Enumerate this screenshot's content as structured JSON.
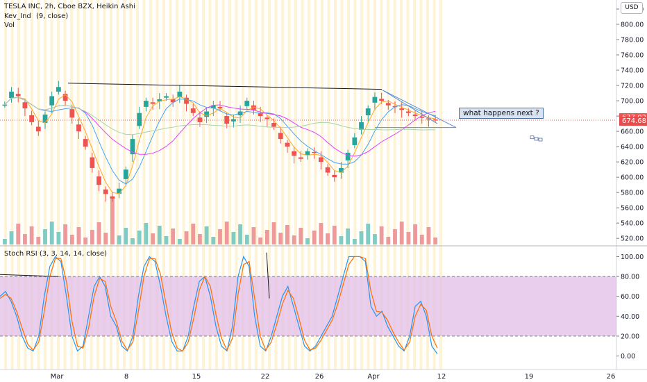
{
  "header": {
    "symbol_line": "TESLA INC, 2h, Cboe BZX, Heikin Ashi",
    "indicator_1": "Kev_Ind",
    "indicator_1_params": "(9, close)",
    "indicator_2": "Vol",
    "currency": "USD"
  },
  "annotation": {
    "text": "what happens next ?"
  },
  "price_tags": [
    {
      "label": "677.02",
      "value": 677.02,
      "color": "#ef5350"
    },
    {
      "label": "674.68",
      "value": 674.68,
      "color": "#e84c4c"
    }
  ],
  "rsi_pane": {
    "title": "Stoch RSI (3, 3, 14, 14, close)"
  },
  "colors": {
    "up": "#26a69a",
    "down": "#ef5350",
    "vol_up": "#80cbc4",
    "vol_down": "#ef9a9a",
    "ma_green": "#a5d6a7",
    "ma_pink": "#e040fb",
    "ma_blue": "#42a5f5",
    "ma_orange": "#ffa726",
    "rsi_k": "#2196f3",
    "rsi_d": "#ff6d00",
    "rsi_band": "#e1bee7",
    "session_band": "#fff3d6",
    "trendline": "#131722",
    "triangle": "#5b8dd6"
  },
  "chart_data": [
    {
      "type": "candlestick",
      "title": "TESLA INC, 2h, Cboe BZX, Heikin Ashi",
      "x_tick_labels": [
        "Mar",
        "8",
        "15",
        "22",
        "26",
        "Apr",
        "12",
        "19",
        "26"
      ],
      "y_tick_labels": [
        "520.00",
        "540.00",
        "560.00",
        "580.00",
        "600.00",
        "620.00",
        "640.00",
        "660.00",
        "680.00",
        "700.00",
        "720.00",
        "740.00",
        "760.00",
        "780.00",
        "800.00",
        "820.00"
      ],
      "ylim": [
        512,
        830
      ],
      "last_prices": [
        677.02,
        674.68
      ],
      "closes_sampled": [
        695,
        712,
        706,
        690,
        672,
        660,
        682,
        706,
        718,
        700,
        678,
        660,
        640,
        612,
        590,
        578,
        572,
        585,
        610,
        650,
        684,
        700,
        696,
        702,
        706,
        698,
        712,
        696,
        684,
        672,
        686,
        694,
        690,
        670,
        676,
        686,
        700,
        688,
        680,
        676,
        666,
        650,
        640,
        628,
        624,
        634,
        632,
        620,
        606,
        600,
        612,
        632,
        652,
        672,
        690,
        705,
        700,
        694,
        692,
        688,
        684,
        680,
        678,
        676,
        675
      ],
      "resistance_level": 715,
      "triangle": {
        "upper_start": 714,
        "upper_end": 670,
        "lower": 665
      }
    },
    {
      "type": "bar",
      "title": "Vol",
      "note": "volume histogram under price, unlabeled scale"
    },
    {
      "type": "line",
      "title": "Stoch RSI (3, 3, 14, 14, close)",
      "y_tick_labels": [
        "0.00",
        "20.00",
        "40.00",
        "60.00",
        "80.00",
        "100.00"
      ],
      "ylim": [
        -8,
        108
      ],
      "bands": [
        20,
        80
      ],
      "series": [
        {
          "name": "K",
          "values": [
            60,
            65,
            55,
            40,
            20,
            8,
            5,
            20,
            60,
            90,
            100,
            95,
            60,
            20,
            5,
            10,
            40,
            70,
            80,
            70,
            40,
            30,
            10,
            5,
            20,
            60,
            90,
            100,
            95,
            70,
            40,
            15,
            5,
            5,
            20,
            50,
            75,
            80,
            60,
            30,
            10,
            5,
            30,
            80,
            100,
            90,
            40,
            10,
            5,
            20,
            40,
            60,
            70,
            50,
            30,
            10,
            5,
            10,
            20,
            30,
            40,
            60,
            80,
            100,
            100,
            100,
            95,
            50,
            40,
            45,
            30,
            20,
            10,
            5,
            20,
            50,
            55,
            40,
            10,
            2
          ]
        },
        {
          "name": "D",
          "values": [
            58,
            62,
            58,
            45,
            28,
            12,
            6,
            14,
            45,
            80,
            98,
            98,
            75,
            35,
            10,
            8,
            28,
            60,
            78,
            75,
            50,
            35,
            15,
            6,
            14,
            45,
            80,
            98,
            98,
            82,
            52,
            24,
            8,
            5,
            14,
            38,
            66,
            80,
            70,
            42,
            18,
            6,
            18,
            62,
            92,
            95,
            58,
            20,
            6,
            14,
            32,
            52,
            66,
            58,
            38,
            16,
            6,
            8,
            16,
            26,
            36,
            52,
            72,
            92,
            100,
            100,
            98,
            65,
            45,
            44,
            36,
            24,
            14,
            6,
            14,
            40,
            52,
            46,
            20,
            8
          ]
        }
      ]
    }
  ]
}
